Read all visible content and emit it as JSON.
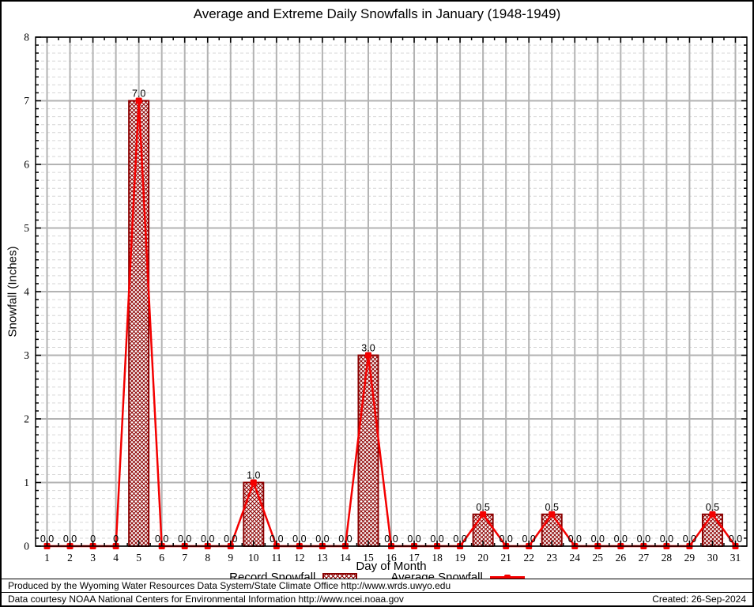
{
  "chart_data": {
    "type": "bar",
    "title": "Average and Extreme Daily Snowfalls in January (1948-1949)",
    "xlabel": "Day of Month",
    "ylabel": "Snowfall (Inches)",
    "x": [
      1,
      2,
      3,
      4,
      5,
      6,
      7,
      8,
      9,
      10,
      11,
      12,
      13,
      14,
      15,
      16,
      17,
      18,
      19,
      20,
      21,
      22,
      23,
      24,
      25,
      26,
      27,
      28,
      29,
      30,
      31
    ],
    "series": [
      {
        "name": "Record Snowfall",
        "type": "bar",
        "values": [
          0,
          0,
          0,
          0,
          7.0,
          0,
          0,
          0,
          0,
          1.0,
          0,
          0,
          0,
          0,
          3.0,
          0,
          0,
          0,
          0,
          0.5,
          0,
          0,
          0.5,
          0,
          0,
          0,
          0,
          0,
          0,
          0.5,
          0
        ]
      },
      {
        "name": "Average Snowfall",
        "type": "line",
        "values": [
          0,
          0,
          0,
          0,
          7.0,
          0,
          0,
          0,
          0,
          1.0,
          0,
          0,
          0,
          0,
          3.0,
          0,
          0,
          0,
          0,
          0.5,
          0,
          0,
          0.5,
          0,
          0,
          0,
          0,
          0,
          0,
          0.5,
          0
        ]
      }
    ],
    "point_labels": [
      "0.0",
      "0.0",
      "0",
      "0",
      "7.0",
      "0.0",
      "0.0",
      "0.0",
      "0.0",
      "1.0",
      "0.0",
      "0.0",
      "0.0",
      "0.0",
      "3.0",
      "0.0",
      "0.0",
      "0.0",
      "0.0",
      "0.5",
      "0.0",
      "0.0",
      "0.5",
      "0.0",
      "0.0",
      "0.0",
      "0.0",
      "0.0",
      "0.0",
      "0.5",
      "0.0"
    ],
    "ylim": [
      0,
      8
    ],
    "yticks": [
      0,
      1,
      2,
      3,
      4,
      5,
      6,
      7,
      8
    ],
    "y_minor_per_unit": 8,
    "grid": true,
    "legend_position": "bottom"
  },
  "legend": {
    "record_label": "Record Snowfall",
    "average_label": "Average Snowfall"
  },
  "footer": {
    "line1": "Produced by the Wyoming Water Resources Data System/State Climate Office http://www.wrds.uwyo.edu",
    "line2": "Data courtesy NOAA National Centers for Environmental Information http://www.ncei.noaa.gov",
    "created": "Created: 26-Sep-2024"
  },
  "colors": {
    "bar_dark_red": "#8b0000",
    "line_red": "#f40000",
    "grid_major": "#b3b3b3",
    "grid_minor": "#d6d6d6",
    "axis_black": "#000000"
  }
}
